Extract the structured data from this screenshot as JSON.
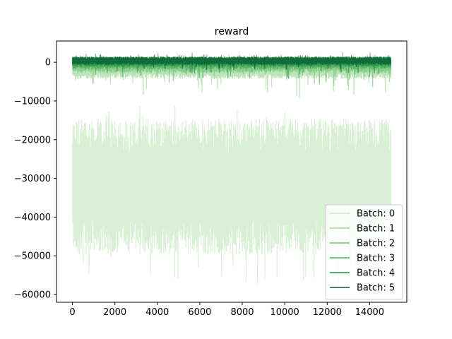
{
  "chart_data": {
    "type": "line",
    "title": "reward",
    "xlabel": "",
    "ylabel": "",
    "xlim": [
      -750,
      15750
    ],
    "ylim": [
      -62000,
      5500
    ],
    "x_ticks": [
      0,
      2000,
      4000,
      6000,
      8000,
      10000,
      12000,
      14000
    ],
    "x_tick_labels": [
      "0",
      "2000",
      "4000",
      "6000",
      "8000",
      "10000",
      "12000",
      "14000"
    ],
    "y_ticks": [
      -60000,
      -50000,
      -40000,
      -30000,
      -20000,
      -10000,
      0
    ],
    "y_tick_labels": [
      "−60000",
      "−50000",
      "−40000",
      "−30000",
      "−20000",
      "−10000",
      "0"
    ],
    "grid": false,
    "legend_position": "lower-right",
    "x_range": [
      0,
      15000
    ],
    "series": [
      {
        "name": "Batch: 0",
        "color": "#c7e9c0",
        "upper_mean": -19000,
        "upper_peak": -11000,
        "lower_mean": -45000,
        "lower_peak": -58500
      },
      {
        "name": "Batch: 1",
        "color": "#a1d99b",
        "upper_mean": 800,
        "upper_peak": 2200,
        "lower_mean": -3500,
        "lower_peak": -9500
      },
      {
        "name": "Batch: 2",
        "color": "#74c476",
        "upper_mean": 900,
        "upper_peak": 2000,
        "lower_mean": -2200,
        "lower_peak": -6500
      },
      {
        "name": "Batch: 3",
        "color": "#41ab5d",
        "upper_mean": 1000,
        "upper_peak": 2600,
        "lower_mean": -1400,
        "lower_peak": -4500
      },
      {
        "name": "Batch: 4",
        "color": "#238b45",
        "upper_mean": 1100,
        "upper_peak": 2000,
        "lower_mean": -800,
        "lower_peak": -3000
      },
      {
        "name": "Batch: 5",
        "color": "#005a32",
        "upper_mean": 1200,
        "upper_peak": 2000,
        "lower_mean": -400,
        "lower_peak": -2000
      }
    ]
  }
}
